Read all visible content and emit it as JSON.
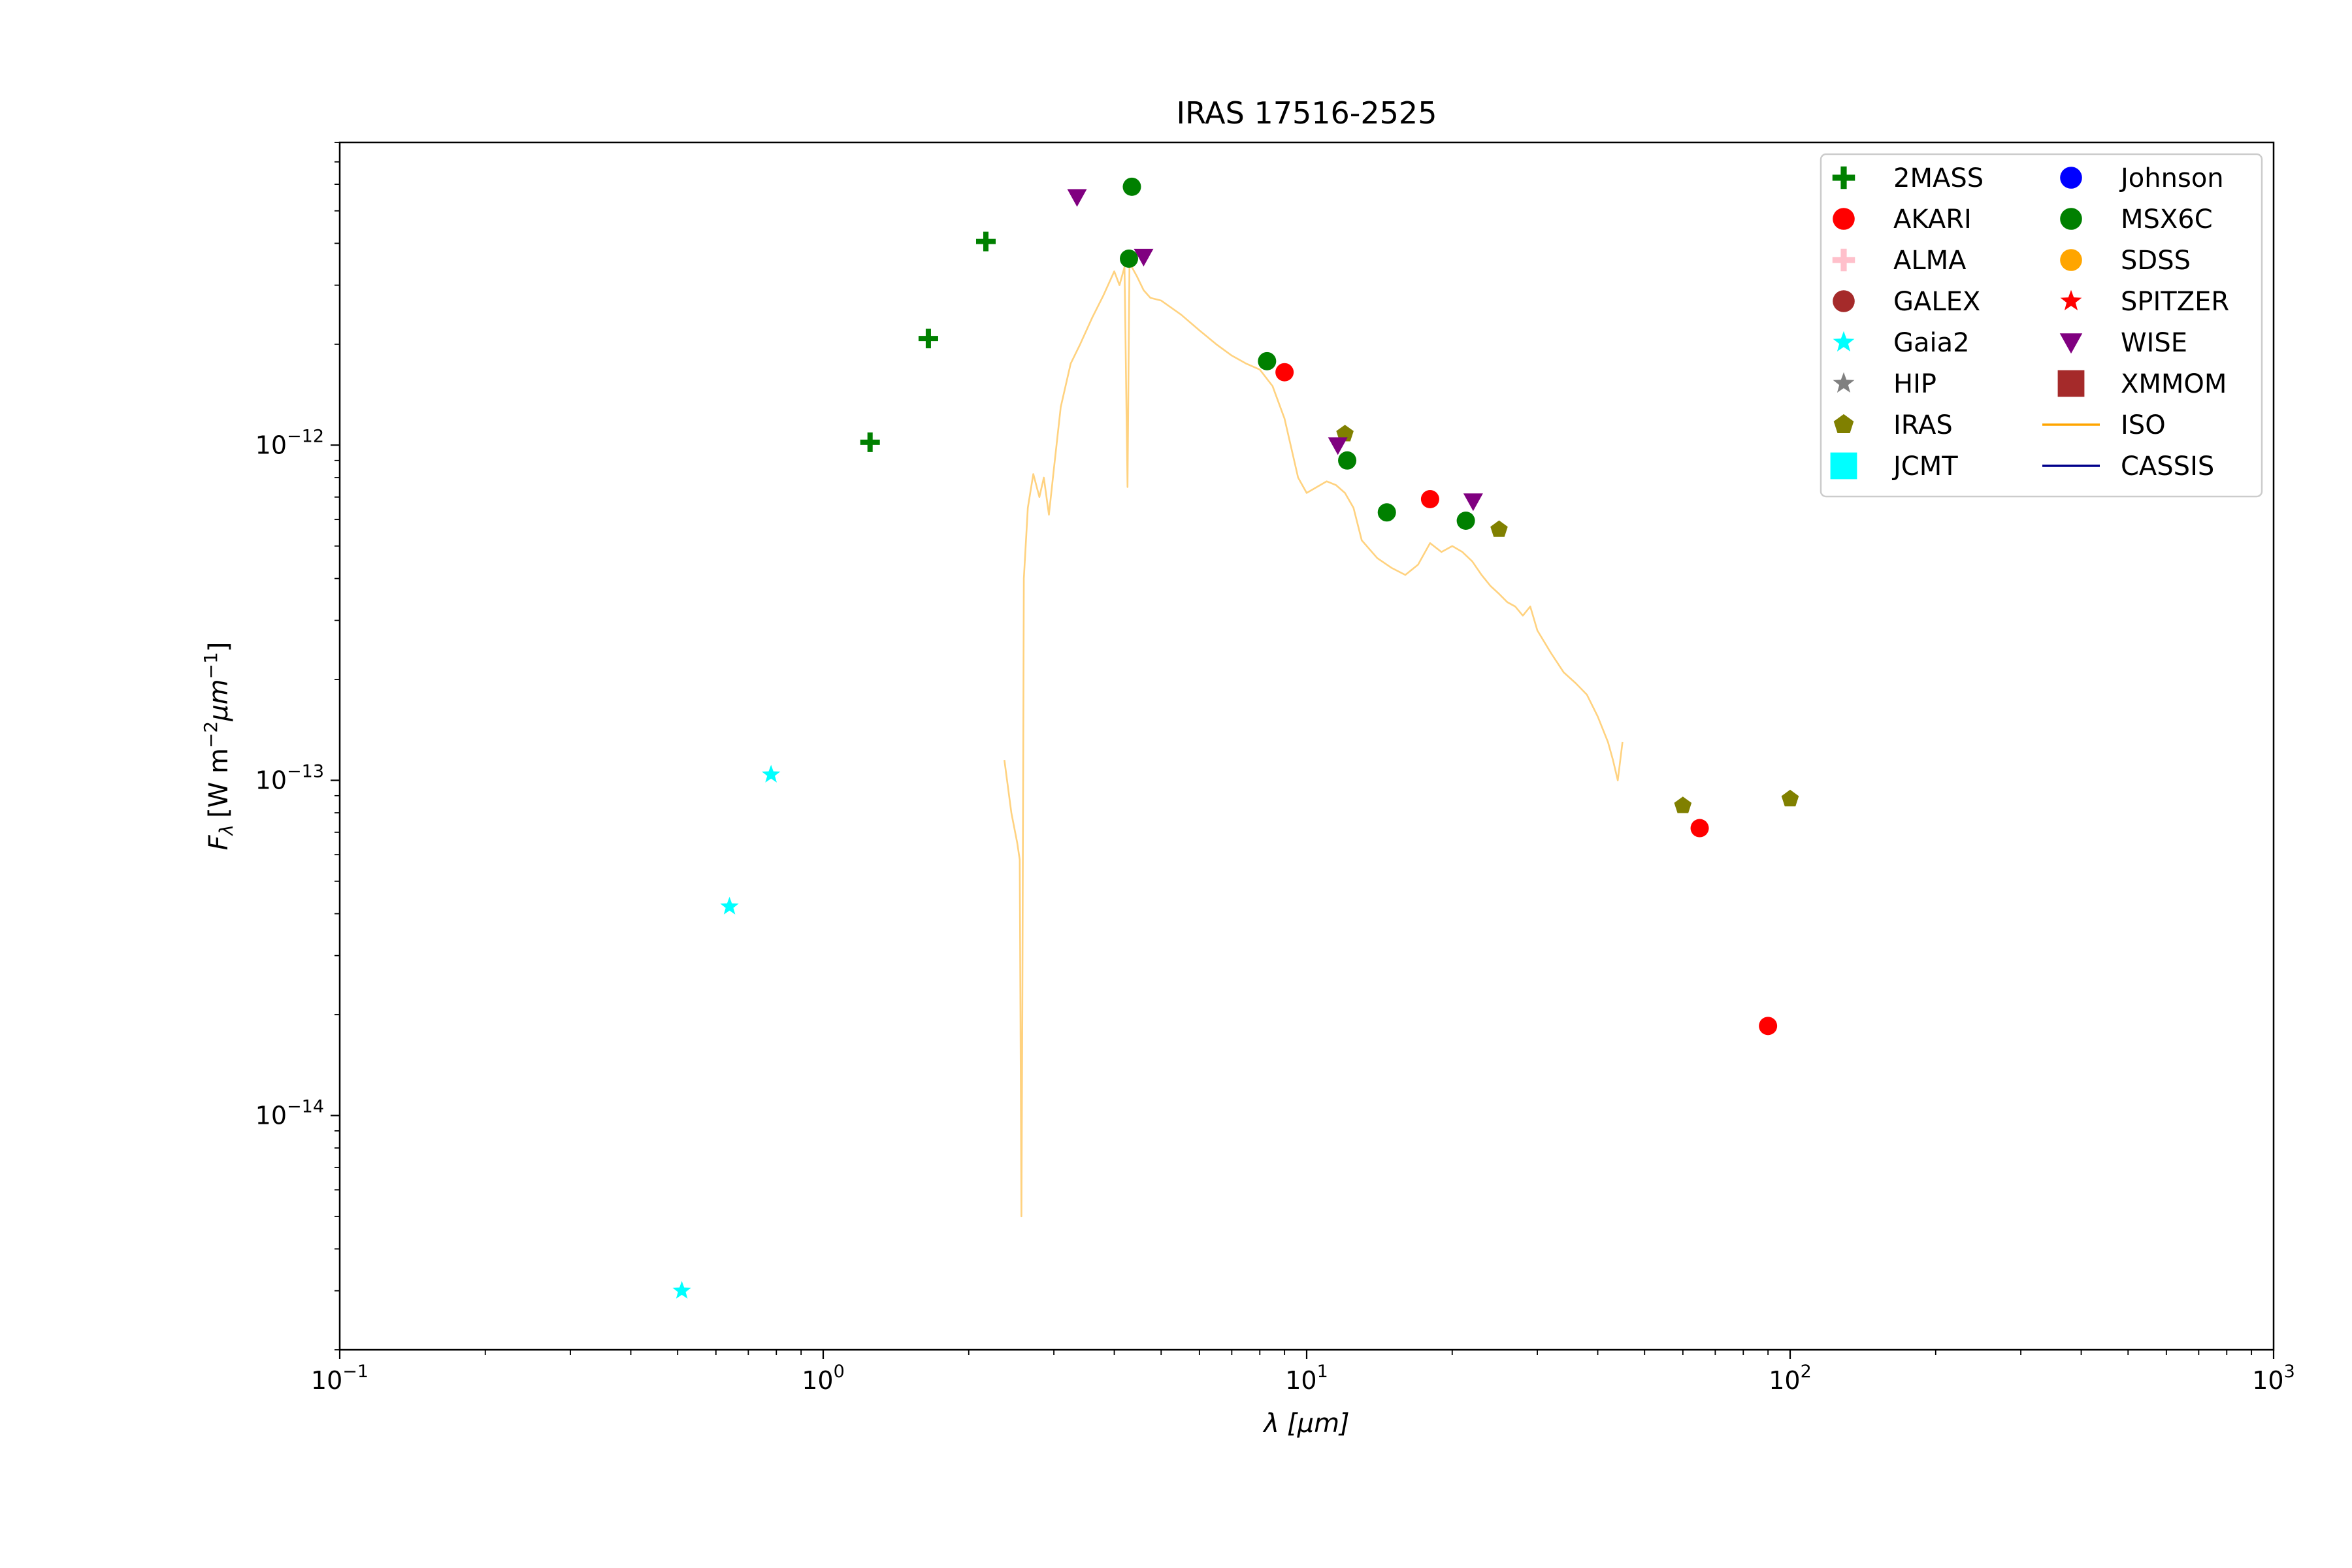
{
  "chart_data": {
    "type": "scatter",
    "title": "IRAS 17516-2525",
    "xlabel": {
      "symbol": "λ",
      "unit": "[μm]"
    },
    "ylabel": {
      "symbol": "F",
      "sub": "λ",
      "unit_pre": "[W m",
      "exp1": "−2",
      "mid": "μm",
      "exp2": "−1",
      "unit_post": "]"
    },
    "x_scale": "log",
    "y_scale": "log",
    "xlim": [
      0.1,
      1000
    ],
    "ylim": [
      2e-15,
      8e-12
    ],
    "x_ticks": [
      {
        "value": 0.1,
        "base": "10",
        "exp": "−1"
      },
      {
        "value": 1,
        "base": "10",
        "exp": "0"
      },
      {
        "value": 10,
        "base": "10",
        "exp": "1"
      },
      {
        "value": 100,
        "base": "10",
        "exp": "2"
      },
      {
        "value": 1000,
        "base": "10",
        "exp": "3"
      }
    ],
    "y_ticks": [
      {
        "value": 1e-14,
        "base": "10",
        "exp": "−14"
      },
      {
        "value": 1e-13,
        "base": "10",
        "exp": "−13"
      },
      {
        "value": 1e-12,
        "base": "10",
        "exp": "−12"
      }
    ],
    "grid": false,
    "legend_position": "top-right",
    "legend_columns": 2,
    "series": [
      {
        "name": "2MASS",
        "marker": "plus",
        "color": "#008000",
        "points": [
          [
            1.25,
            1.02e-12
          ],
          [
            1.65,
            2.08e-12
          ],
          [
            2.17,
            4.05e-12
          ]
        ]
      },
      {
        "name": "AKARI",
        "marker": "circle",
        "color": "#ff0000",
        "points": [
          [
            9.0,
            1.65e-12
          ],
          [
            18.0,
            6.9e-13
          ],
          [
            65.0,
            7.2e-14
          ],
          [
            90.0,
            1.85e-14
          ]
        ]
      },
      {
        "name": "ALMA",
        "marker": "plus",
        "color": "#ffc0cb",
        "points": []
      },
      {
        "name": "GALEX",
        "marker": "circle",
        "color": "#a52a2a",
        "points": []
      },
      {
        "name": "Gaia2",
        "marker": "star",
        "color": "#00ffff",
        "points": [
          [
            0.51,
            3e-15
          ],
          [
            0.64,
            4.2e-14
          ],
          [
            0.78,
            1.04e-13
          ]
        ]
      },
      {
        "name": "HIP",
        "marker": "star",
        "color": "#808080",
        "points": []
      },
      {
        "name": "IRAS",
        "marker": "pentagon",
        "color": "#808000",
        "points": [
          [
            12.0,
            1.08e-12
          ],
          [
            25.0,
            5.6e-13
          ],
          [
            60.0,
            8.4e-14
          ],
          [
            100.0,
            8.8e-14
          ]
        ]
      },
      {
        "name": "JCMT",
        "marker": "square",
        "color": "#00ffff",
        "points": []
      },
      {
        "name": "Johnson",
        "marker": "circle",
        "color": "#0000ff",
        "points": []
      },
      {
        "name": "MSX6C",
        "marker": "circle",
        "color": "#008000",
        "points": [
          [
            4.29,
            3.6e-12
          ],
          [
            4.35,
            5.9e-12
          ],
          [
            8.28,
            1.78e-12
          ],
          [
            12.13,
            9e-13
          ],
          [
            14.65,
            6.3e-13
          ],
          [
            21.34,
            5.95e-13
          ]
        ]
      },
      {
        "name": "SDSS",
        "marker": "circle",
        "color": "#ffa500",
        "points": []
      },
      {
        "name": "SPITZER",
        "marker": "star",
        "color": "#ff0000",
        "points": []
      },
      {
        "name": "WISE",
        "marker": "triangle_down",
        "color": "#800080",
        "points": [
          [
            3.35,
            5.5e-12
          ],
          [
            4.6,
            3.65e-12
          ],
          [
            11.6,
            1e-12
          ],
          [
            22.1,
            6.8e-13
          ]
        ]
      },
      {
        "name": "XMMOM",
        "marker": "square",
        "color": "#a52a2a",
        "points": []
      },
      {
        "name": "ISO",
        "marker": "line",
        "color": "#ffa500",
        "points": [
          [
            2.37,
            1.15e-13
          ],
          [
            2.45,
            8e-14
          ],
          [
            2.52,
            6.5e-14
          ],
          [
            2.55,
            5.8e-14
          ],
          [
            2.57,
            5e-15
          ],
          [
            2.58,
            1.6e-14
          ],
          [
            2.6,
            4e-13
          ],
          [
            2.65,
            6.5e-13
          ],
          [
            2.72,
            8.2e-13
          ],
          [
            2.8,
            7e-13
          ],
          [
            2.86,
            8e-13
          ],
          [
            2.93,
            6.2e-13
          ],
          [
            3.0,
            8.5e-13
          ],
          [
            3.1,
            1.3e-12
          ],
          [
            3.25,
            1.75e-12
          ],
          [
            3.4,
            2e-12
          ],
          [
            3.6,
            2.4e-12
          ],
          [
            3.8,
            2.8e-12
          ],
          [
            4.0,
            3.3e-12
          ],
          [
            4.1,
            3e-12
          ],
          [
            4.2,
            3.4e-12
          ],
          [
            4.26,
            7.5e-13
          ],
          [
            4.3,
            3.5e-12
          ],
          [
            4.45,
            3.2e-12
          ],
          [
            4.6,
            2.9e-12
          ],
          [
            4.75,
            2.75e-12
          ],
          [
            5.0,
            2.7e-12
          ],
          [
            5.5,
            2.45e-12
          ],
          [
            6.0,
            2.2e-12
          ],
          [
            6.5,
            2e-12
          ],
          [
            7.0,
            1.85e-12
          ],
          [
            7.5,
            1.75e-12
          ],
          [
            8.0,
            1.68e-12
          ],
          [
            8.5,
            1.5e-12
          ],
          [
            9.0,
            1.2e-12
          ],
          [
            9.6,
            8e-13
          ],
          [
            10.0,
            7.2e-13
          ],
          [
            10.5,
            7.5e-13
          ],
          [
            11.0,
            7.8e-13
          ],
          [
            11.5,
            7.6e-13
          ],
          [
            12.0,
            7.2e-13
          ],
          [
            12.5,
            6.5e-13
          ],
          [
            13.0,
            5.2e-13
          ],
          [
            14.0,
            4.6e-13
          ],
          [
            15.0,
            4.3e-13
          ],
          [
            16.0,
            4.1e-13
          ],
          [
            17.0,
            4.4e-13
          ],
          [
            18.0,
            5.1e-13
          ],
          [
            19.0,
            4.8e-13
          ],
          [
            20.0,
            5e-13
          ],
          [
            21.0,
            4.8e-13
          ],
          [
            22.0,
            4.5e-13
          ],
          [
            23.0,
            4.1e-13
          ],
          [
            24.0,
            3.8e-13
          ],
          [
            25.0,
            3.6e-13
          ],
          [
            26.0,
            3.4e-13
          ],
          [
            27.0,
            3.3e-13
          ],
          [
            28.0,
            3.1e-13
          ],
          [
            29.0,
            3.3e-13
          ],
          [
            30.0,
            2.8e-13
          ],
          [
            32.0,
            2.4e-13
          ],
          [
            34.0,
            2.1e-13
          ],
          [
            36.0,
            1.95e-13
          ],
          [
            38.0,
            1.8e-13
          ],
          [
            40.0,
            1.55e-13
          ],
          [
            42.0,
            1.3e-13
          ],
          [
            43.0,
            1.15e-13
          ],
          [
            44.0,
            1e-13
          ],
          [
            45.0,
            1.3e-13
          ]
        ]
      },
      {
        "name": "CASSIS",
        "marker": "line",
        "color": "#00008b",
        "points": []
      }
    ]
  }
}
